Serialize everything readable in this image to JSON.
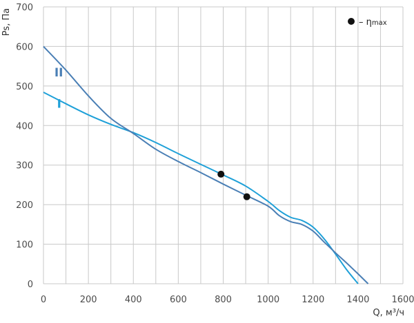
{
  "chart_data": {
    "type": "line",
    "title": "",
    "xlabel": "Q, м³/ч",
    "ylabel": "Ps, Па",
    "xlim": [
      0,
      1600
    ],
    "ylim": [
      0,
      700
    ],
    "xticks": [
      0,
      100,
      200,
      300,
      400,
      500,
      600,
      700,
      800,
      900,
      1000,
      1100,
      1200,
      1300,
      1400,
      1500,
      1600
    ],
    "xtick_labels": [
      "0",
      "200",
      "400",
      "600",
      "800",
      "1000",
      "1200",
      "1400",
      "1600"
    ],
    "xtick_label_values": [
      0,
      200,
      400,
      600,
      800,
      1000,
      1200,
      1400,
      1600
    ],
    "yticks": [
      0,
      100,
      200,
      300,
      400,
      500,
      600,
      700
    ],
    "ytick_labels": [
      "0",
      "100",
      "200",
      "300",
      "400",
      "500",
      "600",
      "700"
    ],
    "grid": true,
    "legend": {
      "position": "top-right",
      "marker": "●",
      "text": "– η",
      "sub": "max"
    },
    "series": [
      {
        "name": "I",
        "color": "#1ea0d8",
        "x": [
          0,
          100,
          200,
          300,
          400,
          500,
          600,
          700,
          800,
          900,
          1000,
          1050,
          1100,
          1150,
          1200,
          1250,
          1300,
          1350,
          1400
        ],
        "y": [
          484,
          455,
          427,
          403,
          382,
          357,
          329,
          302,
          275,
          247,
          208,
          185,
          168,
          160,
          143,
          113,
          75,
          35,
          0
        ],
        "label_at": [
          70,
          455
        ],
        "eta_max": [
          790,
          277
        ]
      },
      {
        "name": "II",
        "color": "#4a7fb5",
        "x": [
          0,
          100,
          200,
          300,
          400,
          500,
          600,
          700,
          800,
          900,
          1000,
          1050,
          1100,
          1150,
          1200,
          1250,
          1300,
          1350,
          1400,
          1445
        ],
        "y": [
          600,
          540,
          475,
          418,
          380,
          340,
          309,
          281,
          252,
          224,
          196,
          172,
          157,
          150,
          133,
          105,
          78,
          52,
          25,
          0
        ],
        "label_at": [
          68,
          535
        ],
        "eta_max": [
          905,
          220
        ]
      }
    ]
  }
}
